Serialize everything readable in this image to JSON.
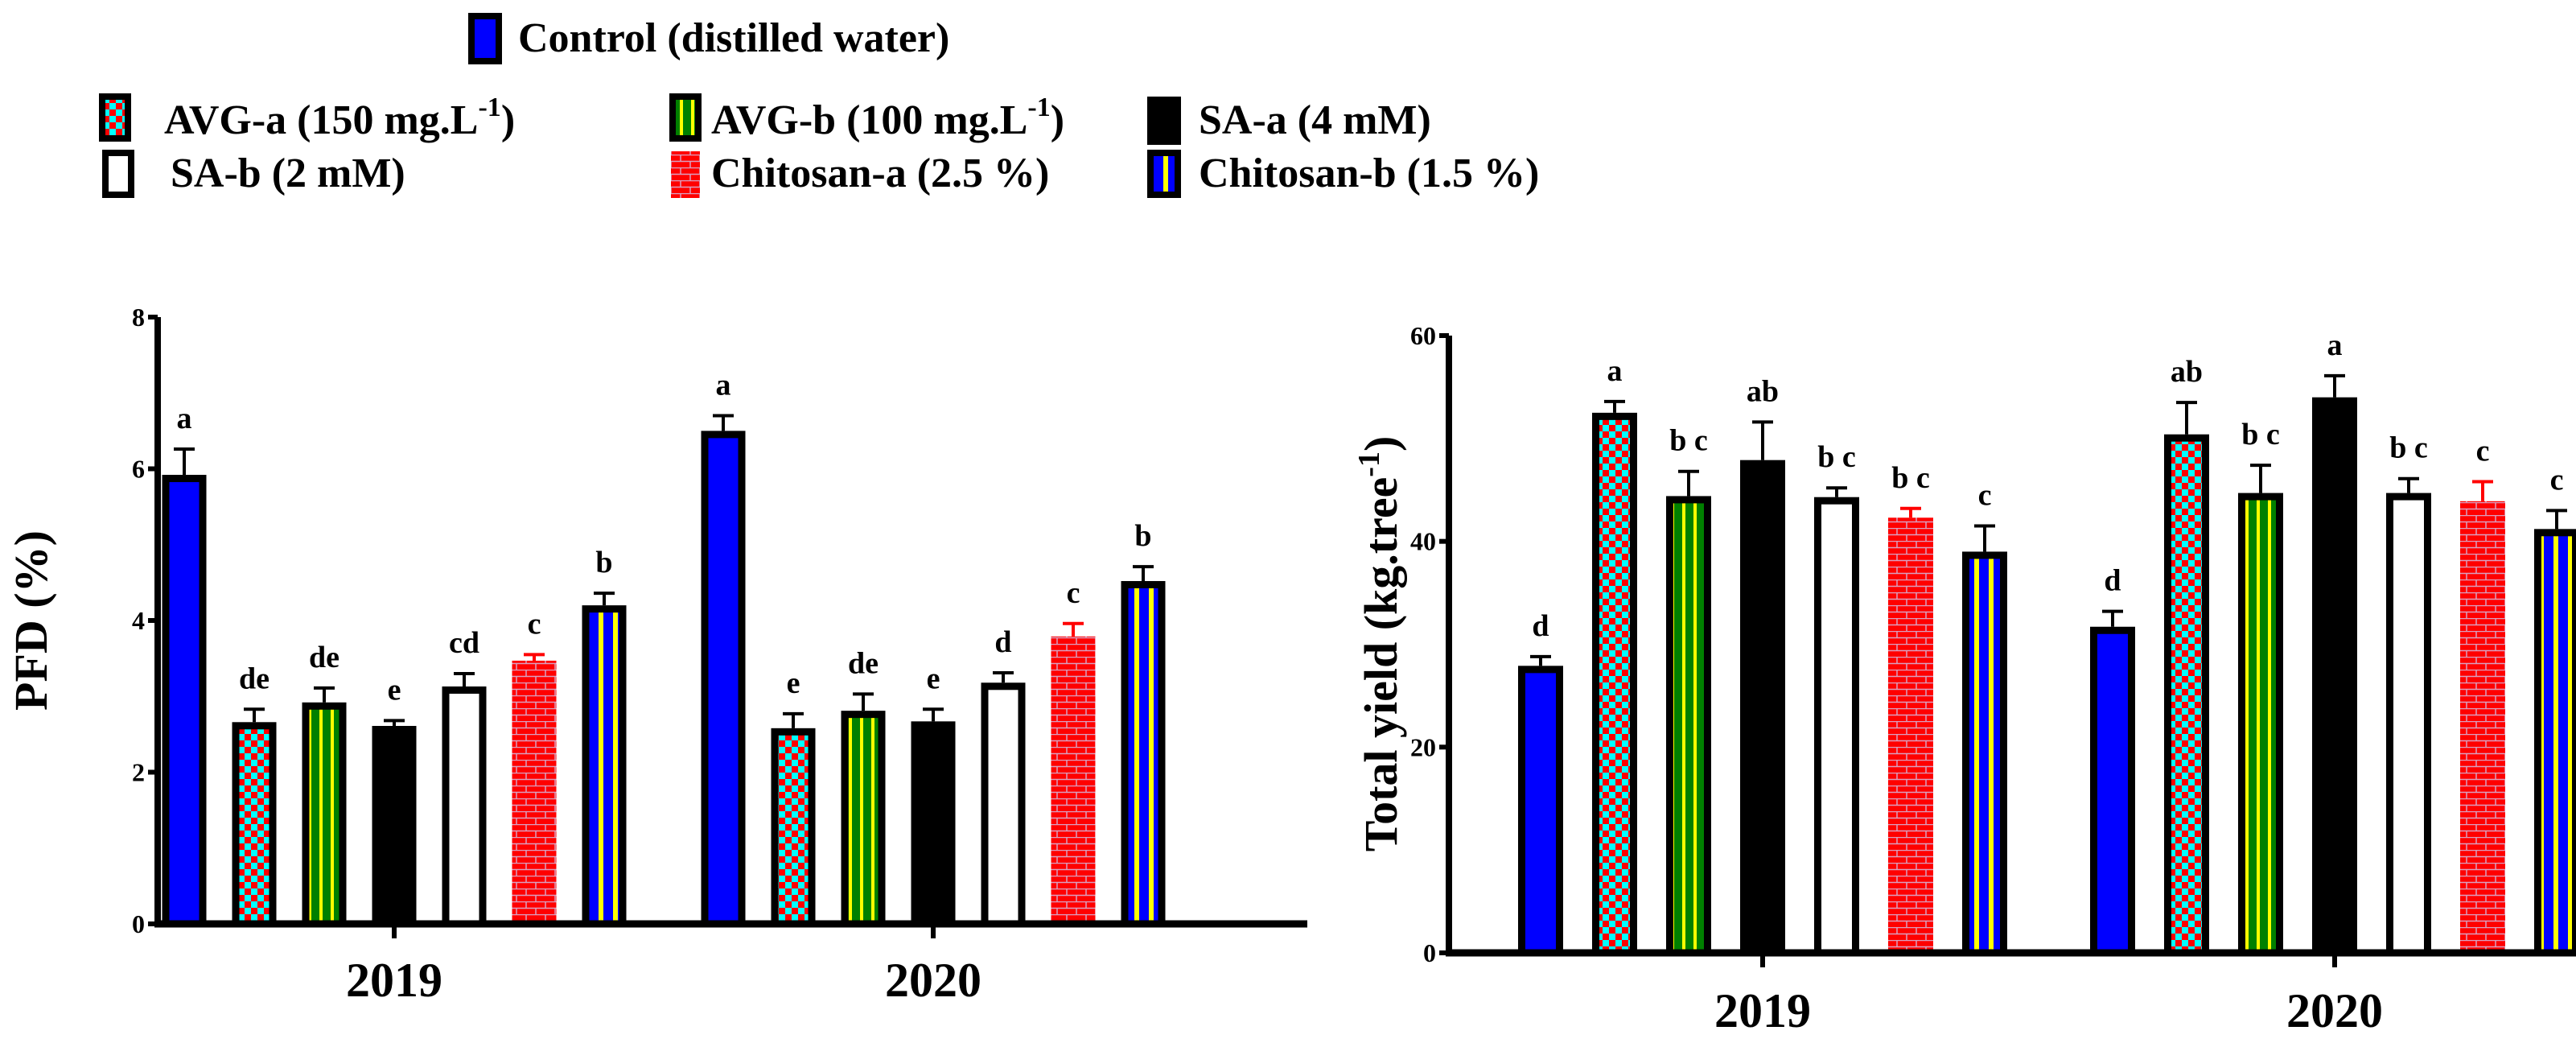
{
  "legend": {
    "control": "Control (distilled water)",
    "items": [
      "AVG-a (150 mg.L",
      "AVG-b (100 mg.L",
      "SA-a (4 mM)",
      "SA-b (2 mM)",
      "Chitosan-a (2.5 %)",
      "Chitosan-b (1.5 %)"
    ],
    "sup": "-1"
  },
  "colors": {
    "blue": "#0000ff",
    "cyan": "#00ffff",
    "red": "#ff0000",
    "green": "#008000",
    "yellow": "#ffff00",
    "black": "#000000",
    "white": "#ffffff"
  },
  "chart_data": [
    {
      "type": "bar",
      "ylabel": "PFD (%)",
      "xlabel": "",
      "ylim": [
        0,
        8
      ],
      "yticks": [
        "0",
        "2",
        "4",
        "6",
        "8"
      ],
      "categories": [
        "2019",
        "2020"
      ],
      "series": [
        {
          "name": "Control (distilled water)",
          "values": [
            5.92,
            6.5
          ],
          "errors": [
            0.34,
            0.2
          ],
          "letters": [
            "a",
            "a"
          ]
        },
        {
          "name": "AVG-a (150 mg.L-1)",
          "values": [
            2.66,
            2.58
          ],
          "errors": [
            0.17,
            0.19
          ],
          "letters": [
            "de",
            "e"
          ]
        },
        {
          "name": "AVG-b (100 mg.L-1)",
          "values": [
            2.92,
            2.81
          ],
          "errors": [
            0.19,
            0.22
          ],
          "letters": [
            "de",
            "de"
          ]
        },
        {
          "name": "SA-a (4 mM)",
          "values": [
            2.61,
            2.67
          ],
          "errors": [
            0.07,
            0.16
          ],
          "letters": [
            "e",
            "e"
          ]
        },
        {
          "name": "SA-b (2 mM)",
          "values": [
            3.13,
            3.18
          ],
          "errors": [
            0.17,
            0.13
          ],
          "letters": [
            "cd",
            "d"
          ]
        },
        {
          "name": "Chitosan-a (2.5 %)",
          "values": [
            3.47,
            3.79
          ],
          "errors": [
            0.08,
            0.17
          ],
          "letters": [
            "c",
            "c"
          ]
        },
        {
          "name": "Chitosan-b (1.5 %)",
          "values": [
            4.2,
            4.52
          ],
          "errors": [
            0.16,
            0.19
          ],
          "letters": [
            "b",
            "b"
          ]
        }
      ]
    },
    {
      "type": "bar",
      "ylabel": "Total yield (kg.tree",
      "ylabel_sup": "-1",
      "ylabel_end": ")",
      "xlabel": "",
      "ylim": [
        0,
        60
      ],
      "yticks": [
        "0",
        "20",
        "40",
        "60"
      ],
      "categories": [
        "2019",
        "2020"
      ],
      "series": [
        {
          "name": "Control (distilled water)",
          "values": [
            27.9,
            31.7
          ],
          "errors": [
            0.9,
            1.5
          ],
          "letters": [
            "d",
            "d"
          ]
        },
        {
          "name": "AVG-a (150 mg.L-1)",
          "values": [
            52.5,
            50.4
          ],
          "errors": [
            1.1,
            3.1
          ],
          "letters": [
            "a",
            "ab"
          ]
        },
        {
          "name": "AVG-b (100 mg.L-1)",
          "values": [
            44.4,
            44.7
          ],
          "errors": [
            2.4,
            2.7
          ],
          "letters": [
            "b c",
            "b c"
          ]
        },
        {
          "name": "SA-a (4 mM)",
          "values": [
            47.9,
            54.0
          ],
          "errors": [
            3.7,
            2.1
          ],
          "letters": [
            "ab",
            "a"
          ]
        },
        {
          "name": "SA-b (2 mM)",
          "values": [
            44.3,
            44.7
          ],
          "errors": [
            0.9,
            1.4
          ],
          "letters": [
            "b c",
            "b c"
          ]
        },
        {
          "name": "Chitosan-a (2.5 %)",
          "values": [
            42.3,
            43.9
          ],
          "errors": [
            0.9,
            1.9
          ],
          "letters": [
            "b c",
            "c"
          ]
        },
        {
          "name": "Chitosan-b (1.5 %)",
          "values": [
            39.0,
            41.2
          ],
          "errors": [
            2.5,
            1.8
          ],
          "letters": [
            "c",
            "c"
          ]
        }
      ]
    }
  ]
}
